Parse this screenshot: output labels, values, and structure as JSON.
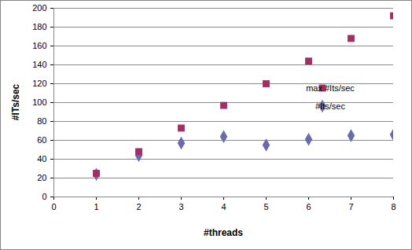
{
  "chart_data": {
    "type": "scatter",
    "x_label": "#threads",
    "y_label": "#ITs/sec",
    "x": [
      1,
      2,
      3,
      4,
      5,
      6,
      7,
      8
    ],
    "series": [
      {
        "name": "max #Its/sec",
        "color": "#9e3062",
        "marker": "square",
        "values": [
          25,
          48,
          73,
          97,
          120,
          144,
          168,
          192
        ]
      },
      {
        "name": "#Its/sec",
        "color": "#6a6aae",
        "marker": "diamond",
        "values": [
          24,
          44,
          57,
          64,
          55,
          61,
          65,
          66
        ]
      }
    ],
    "xlim": [
      0,
      8
    ],
    "xticks": [
      0,
      1,
      2,
      3,
      4,
      5,
      6,
      7,
      8
    ],
    "ylim": [
      0,
      200
    ],
    "yticks": [
      0,
      20,
      40,
      60,
      80,
      100,
      120,
      140,
      160,
      180,
      200
    ],
    "grid": true,
    "legend": "right"
  }
}
